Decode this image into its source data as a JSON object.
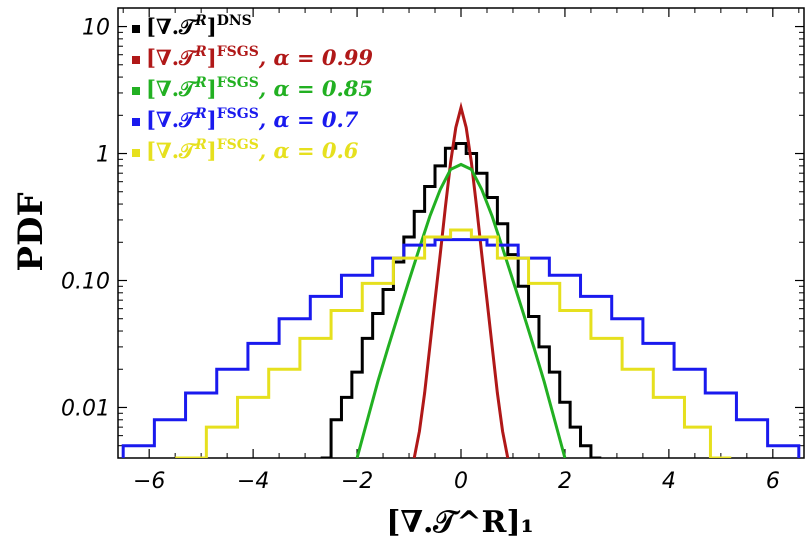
{
  "chart_data": {
    "type": "line",
    "xlabel": "[∇.𝒯^R]₁",
    "ylabel": "PDF",
    "xlim": [
      -6.6,
      6.6
    ],
    "ylim": [
      0.004,
      14
    ],
    "yscale": "log",
    "x_ticks": [
      -6,
      -4,
      -2,
      0,
      2,
      4,
      6
    ],
    "x_tick_labels": [
      "−6",
      "−4",
      "−2",
      "0",
      "2",
      "4",
      "6"
    ],
    "y_ticks": [
      0.01,
      0.1,
      1,
      10
    ],
    "y_tick_labels": [
      "0.01",
      "0.10",
      "1",
      "10"
    ],
    "legend_position": "top-left",
    "series": [
      {
        "name": "[∇.𝒯^R]^DNS",
        "legend_suffix": "",
        "color": "#000000",
        "step": true,
        "x": [
          -2.6,
          -2.4,
          -2.2,
          -2.0,
          -1.8,
          -1.6,
          -1.4,
          -1.2,
          -1.0,
          -0.8,
          -0.6,
          -0.4,
          -0.2,
          0.0,
          0.2,
          0.4,
          0.6,
          0.8,
          1.0,
          1.2,
          1.4,
          1.6,
          1.8,
          2.0,
          2.2,
          2.4,
          2.6
        ],
        "values": [
          0.004,
          0.008,
          0.012,
          0.019,
          0.035,
          0.055,
          0.085,
          0.14,
          0.22,
          0.35,
          0.55,
          0.8,
          1.1,
          1.2,
          1.0,
          0.7,
          0.45,
          0.28,
          0.16,
          0.09,
          0.052,
          0.03,
          0.019,
          0.011,
          0.007,
          0.005,
          0.004
        ]
      },
      {
        "name": "[∇.𝒯^R]^FSGS",
        "legend_suffix": ", α = 0.99",
        "color": "#b01818",
        "step": false,
        "x": [
          -0.9,
          -0.8,
          -0.7,
          -0.6,
          -0.5,
          -0.4,
          -0.3,
          -0.2,
          -0.1,
          0.0,
          0.1,
          0.2,
          0.3,
          0.4,
          0.5,
          0.6,
          0.7,
          0.8,
          0.9
        ],
        "values": [
          0.004,
          0.0065,
          0.013,
          0.03,
          0.07,
          0.16,
          0.38,
          0.85,
          1.6,
          2.3,
          1.6,
          0.85,
          0.38,
          0.16,
          0.07,
          0.03,
          0.013,
          0.0065,
          0.004
        ]
      },
      {
        "name": "[∇.𝒯^R]^FSGS",
        "legend_suffix": ", α = 0.85",
        "color": "#22b022",
        "step": false,
        "x": [
          -2.0,
          -1.8,
          -1.6,
          -1.4,
          -1.2,
          -1.0,
          -0.8,
          -0.6,
          -0.4,
          -0.2,
          0.0,
          0.2,
          0.4,
          0.6,
          0.8,
          1.0,
          1.2,
          1.4,
          1.6,
          1.8,
          2.0
        ],
        "values": [
          0.004,
          0.008,
          0.016,
          0.03,
          0.055,
          0.1,
          0.18,
          0.32,
          0.52,
          0.75,
          0.82,
          0.75,
          0.52,
          0.32,
          0.18,
          0.1,
          0.055,
          0.03,
          0.016,
          0.008,
          0.004
        ]
      },
      {
        "name": "[∇.𝒯^R]^FSGS",
        "legend_suffix": ", α = 0.7",
        "color": "#1a1aee",
        "step": true,
        "x": [
          -6.2,
          -5.6,
          -5.0,
          -4.4,
          -3.8,
          -3.2,
          -2.6,
          -2.0,
          -1.4,
          -0.8,
          -0.2,
          0.0,
          0.2,
          0.8,
          1.4,
          2.0,
          2.6,
          3.2,
          3.8,
          4.4,
          5.0,
          5.6,
          6.2
        ],
        "values": [
          0.005,
          0.008,
          0.013,
          0.02,
          0.032,
          0.05,
          0.075,
          0.11,
          0.15,
          0.19,
          0.21,
          0.21,
          0.21,
          0.19,
          0.15,
          0.11,
          0.075,
          0.05,
          0.032,
          0.02,
          0.013,
          0.008,
          0.005
        ]
      },
      {
        "name": "[∇.𝒯^R]^FSGS",
        "legend_suffix": ", α = 0.6",
        "color": "#e6e01e",
        "step": true,
        "x": [
          -5.2,
          -4.6,
          -4.0,
          -3.4,
          -2.8,
          -2.2,
          -1.6,
          -1.0,
          -0.4,
          0.0,
          0.4,
          1.0,
          1.6,
          2.2,
          2.8,
          3.4,
          4.0,
          4.6,
          5.0
        ],
        "values": [
          0.004,
          0.007,
          0.012,
          0.02,
          0.035,
          0.058,
          0.095,
          0.15,
          0.22,
          0.25,
          0.22,
          0.15,
          0.095,
          0.058,
          0.035,
          0.02,
          0.012,
          0.007,
          0.004
        ]
      }
    ]
  }
}
